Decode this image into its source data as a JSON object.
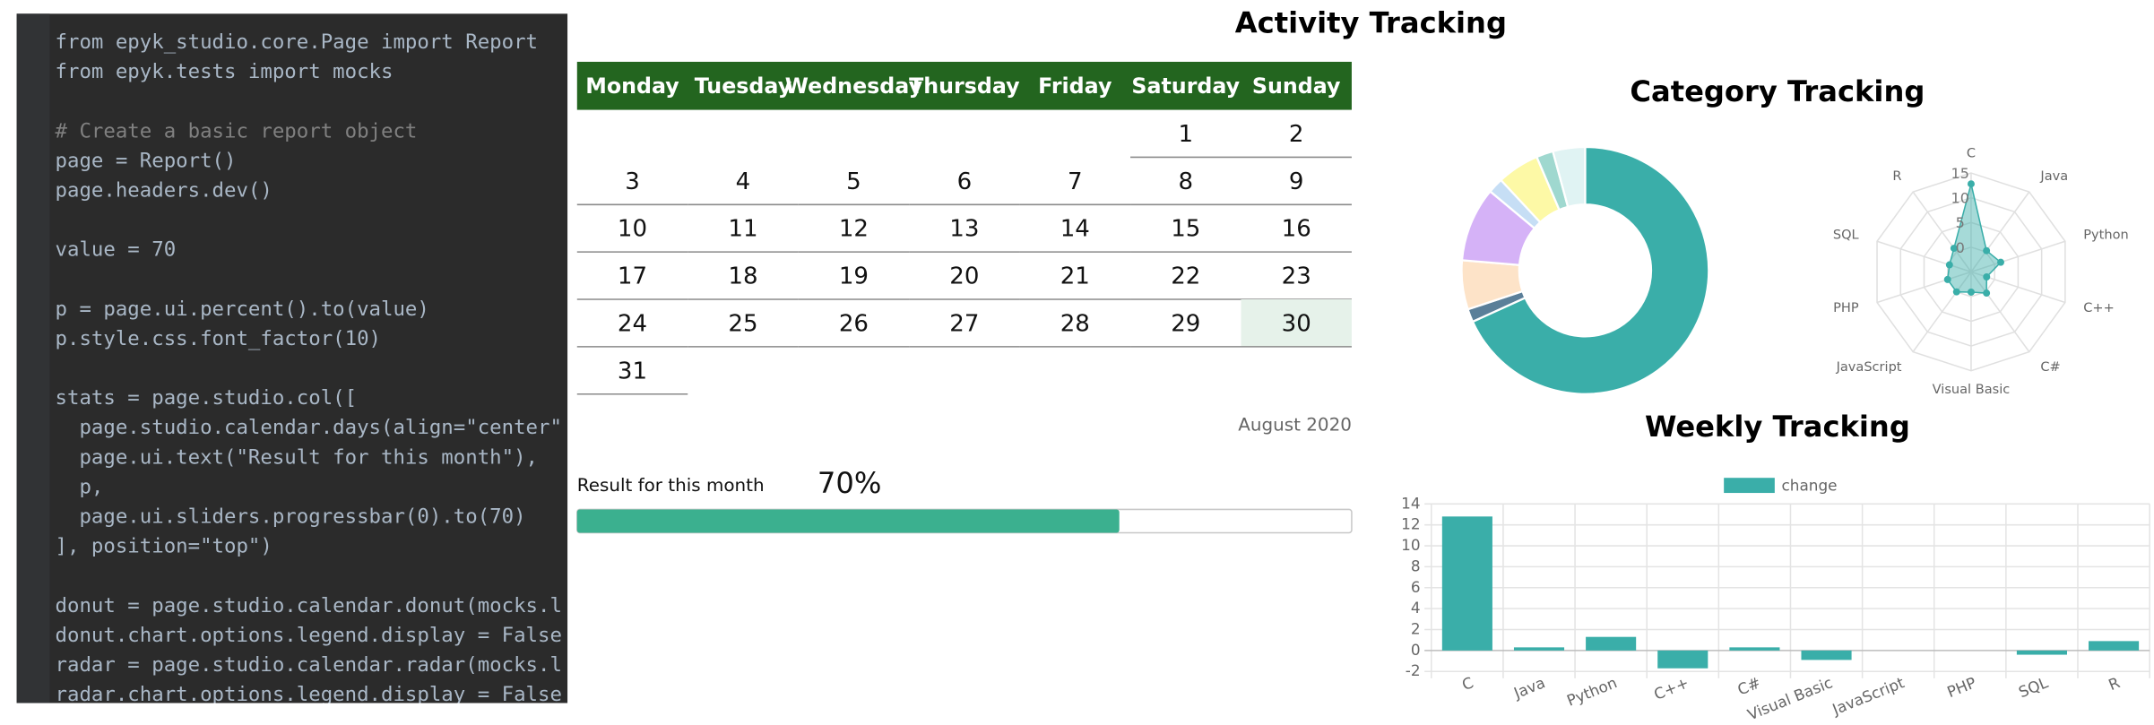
{
  "code": {
    "lines": [
      "from epyk_studio.core.Page import Report",
      "from epyk.tests import mocks",
      "# Create a basic report object",
      "page = Report()",
      "page.headers.dev()",
      "value = 70",
      "p = page.ui.percent().to(value)",
      "p.style.css.font_factor(10)",
      "stats = page.studio.col([",
      "  page.studio.calendar.days(align=\"center\"",
      "  page.ui.text(\"Result for this month\"),",
      "  p,",
      "  page.ui.sliders.progressbar(0).to(70)",
      "], position=\"top\")",
      "donut = page.studio.calendar.donut(mocks.l",
      "donut.chart.options.legend.display = False",
      "radar = page.studio.calendar.radar(mocks.l",
      "radar.chart.options.legend.display = False"
    ]
  },
  "calendar": {
    "title": "Activity Tracking",
    "weekdays": [
      "Monday",
      "Tuesday",
      "Wednesday",
      "Thursday",
      "Friday",
      "Saturday",
      "Sunday"
    ],
    "days": [
      1,
      2,
      3,
      4,
      5,
      6,
      7,
      8,
      9,
      10,
      11,
      12,
      13,
      14,
      15,
      16,
      17,
      18,
      19,
      20,
      21,
      22,
      23,
      24,
      25,
      26,
      27,
      28,
      29,
      30,
      31
    ],
    "month": "August 2020"
  },
  "progress": {
    "label": "Result for this month",
    "value": 70,
    "value_label": "70%"
  },
  "chart_data": [
    {
      "type": "donut",
      "title": "Category Tracking",
      "values": [
        68,
        1.7,
        6.4,
        9.7,
        2,
        5.5,
        2.2,
        4.2
      ],
      "colors": [
        "#3aaea9",
        "#5b7f99",
        "#fde3c8",
        "#d5b2f7",
        "#c6def5",
        "#fdf9a6",
        "#9fd8cf",
        "#e0f3f3"
      ]
    },
    {
      "type": "radar",
      "categories": [
        "C",
        "Java",
        "Python",
        "C++",
        "C#",
        "Visual Basic",
        "JavaScript",
        "PHP",
        "SQL",
        "R"
      ],
      "values": [
        12.8,
        0.3,
        1.3,
        -1.7,
        0.3,
        -0.9,
        0,
        0,
        -0.4,
        0.9
      ],
      "color": "#3aaea9",
      "rlim": [
        -5,
        15
      ],
      "rticks": [
        0,
        5,
        10,
        15
      ]
    },
    {
      "type": "bar",
      "title": "Weekly Tracking",
      "categories": [
        "C",
        "Java",
        "Python",
        "C++",
        "C#",
        "Visual Basic",
        "JavaScript",
        "PHP",
        "SQL",
        "R"
      ],
      "series": [
        {
          "name": "change",
          "color": "#3aaea9",
          "values": [
            12.8,
            0.3,
            1.3,
            -1.7,
            0.3,
            -0.9,
            0,
            0,
            -0.4,
            0.9
          ]
        }
      ],
      "ylim": [
        -2,
        14
      ],
      "yticks": [
        -2,
        0,
        2,
        4,
        6,
        8,
        10,
        12,
        14
      ],
      "grid": true
    }
  ]
}
